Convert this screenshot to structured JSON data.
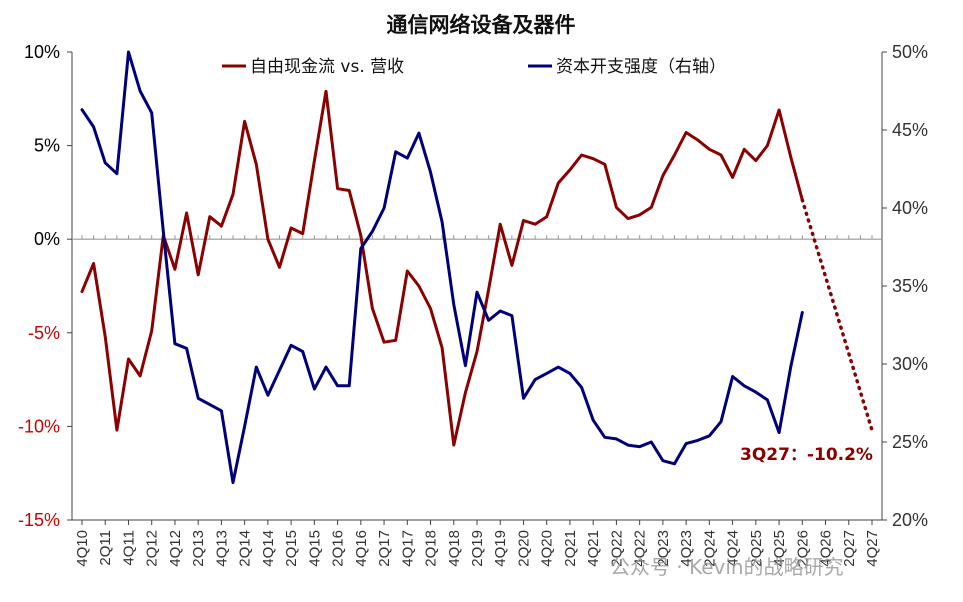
{
  "chart_data": {
    "type": "line",
    "title": "通信网络设备及器件",
    "left_axis": {
      "ylim": [
        -15,
        10
      ],
      "ticks": [
        "10%",
        "5%",
        "0%",
        "-5%",
        "-10%",
        "-15%"
      ],
      "tick_values": [
        10,
        5,
        0,
        -5,
        -10,
        -15
      ],
      "tick_color_positive": "#000000",
      "tick_color_negative": "#cc0000"
    },
    "right_axis": {
      "ylim": [
        20,
        50
      ],
      "ticks": [
        "50%",
        "45%",
        "40%",
        "35%",
        "30%",
        "25%",
        "20%"
      ],
      "tick_values": [
        50,
        45,
        40,
        35,
        30,
        25,
        20
      ]
    },
    "x_tick_labels": [
      "4Q10",
      "2Q11",
      "4Q11",
      "2Q12",
      "4Q12",
      "2Q13",
      "4Q13",
      "2Q14",
      "4Q14",
      "2Q15",
      "4Q15",
      "2Q16",
      "4Q16",
      "2Q17",
      "4Q17",
      "2Q18",
      "4Q18",
      "2Q19",
      "4Q19",
      "2Q20",
      "4Q20",
      "2Q21",
      "4Q21",
      "2Q22",
      "4Q22",
      "2Q23",
      "4Q23",
      "2Q24",
      "4Q24",
      "2Q25",
      "4Q25",
      "2Q26",
      "4Q26",
      "2Q27",
      "4Q27"
    ],
    "quarters_count": 69,
    "series": [
      {
        "name": "自由现金流 vs. 营收",
        "axis": "left",
        "color": "#8b0000",
        "values": [
          -2.8,
          -1.3,
          -5.2,
          -10.2,
          -6.4,
          -7.3,
          -4.9,
          0.2,
          -1.6,
          1.4,
          -1.9,
          1.2,
          0.7,
          2.4,
          6.3,
          4.0,
          0.0,
          -1.5,
          0.6,
          0.3,
          4.2,
          7.9,
          2.7,
          2.6,
          0.2,
          -3.7,
          -5.5,
          -5.4,
          -1.7,
          -2.5,
          -3.7,
          -5.8,
          -11.0,
          -8.2,
          -6.0,
          -2.7,
          0.8,
          -1.4,
          1.0,
          0.8,
          1.2,
          3.0,
          3.7,
          4.5,
          4.3,
          4.0,
          1.7,
          1.1,
          1.3,
          1.7,
          3.4,
          4.5,
          5.7,
          5.3,
          4.8,
          4.5,
          3.3,
          4.8,
          4.2,
          5.0,
          6.9,
          4.4,
          2.1
        ],
        "forecast": {
          "from_index": 62,
          "to_index": 68,
          "values": [
            2.1,
            -10.2
          ],
          "style": "dotted"
        }
      },
      {
        "name": "资本开支强度（右轴）",
        "axis": "right",
        "color": "#00007a",
        "values": [
          46.3,
          45.2,
          42.9,
          42.2,
          50.0,
          47.5,
          46.1,
          38.5,
          31.3,
          31.0,
          27.8,
          27.4,
          27.0,
          22.4,
          26.0,
          29.8,
          28.0,
          29.6,
          31.2,
          30.8,
          28.4,
          29.8,
          28.6,
          28.6,
          37.4,
          38.5,
          40.0,
          43.6,
          43.2,
          44.8,
          42.3,
          39.1,
          33.8,
          29.9,
          34.6,
          32.8,
          33.4,
          33.1,
          27.8,
          29.0,
          29.4,
          29.8,
          29.4,
          28.5,
          26.4,
          25.3,
          25.2,
          24.8,
          24.7,
          25.0,
          23.8,
          23.6,
          24.9,
          25.1,
          25.4,
          26.3,
          29.2,
          28.6,
          28.2,
          27.7,
          25.6,
          29.8,
          33.3
        ]
      }
    ],
    "annotation": {
      "text": "3Q27：-10.2%",
      "color": "#8b0000"
    },
    "zero_line": {
      "value": 0,
      "color": "#999999"
    },
    "grid": false,
    "legend": "top-center"
  },
  "watermark": {
    "text": "公众号 · Kevin的战略研究"
  }
}
